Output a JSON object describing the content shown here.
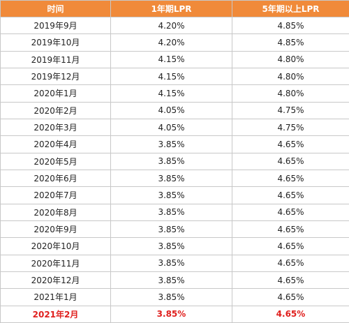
{
  "table": {
    "header": [
      "时间",
      "1年期LPR",
      "5年期以上LPR"
    ],
    "rows": [
      [
        "2019年9月",
        "4.20%",
        "4.85%"
      ],
      [
        "2019年10月",
        "4.20%",
        "4.85%"
      ],
      [
        "2019年11月",
        "4.15%",
        "4.80%"
      ],
      [
        "2019年12月",
        "4.15%",
        "4.80%"
      ],
      [
        "2020年1月",
        "4.15%",
        "4.80%"
      ],
      [
        "2020年2月",
        "4.05%",
        "4.75%"
      ],
      [
        "2020年3月",
        "4.05%",
        "4.75%"
      ],
      [
        "2020年4月",
        "3.85%",
        "4.65%"
      ],
      [
        "2020年5月",
        "3.85%",
        "4.65%"
      ],
      [
        "2020年6月",
        "3.85%",
        "4.65%"
      ],
      [
        "2020年7月",
        "3.85%",
        "4.65%"
      ],
      [
        "2020年8月",
        "3.85%",
        "4.65%"
      ],
      [
        "2020年9月",
        "3.85%",
        "4.65%"
      ],
      [
        "2020年10月",
        "3.85%",
        "4.65%"
      ],
      [
        "2020年11月",
        "3.85%",
        "4.65%"
      ],
      [
        "2020年12月",
        "3.85%",
        "4.65%"
      ],
      [
        "2021年1月",
        "3.85%",
        "4.65%"
      ],
      [
        "2021年2月",
        "3.85%",
        "4.65%"
      ]
    ]
  }
}
